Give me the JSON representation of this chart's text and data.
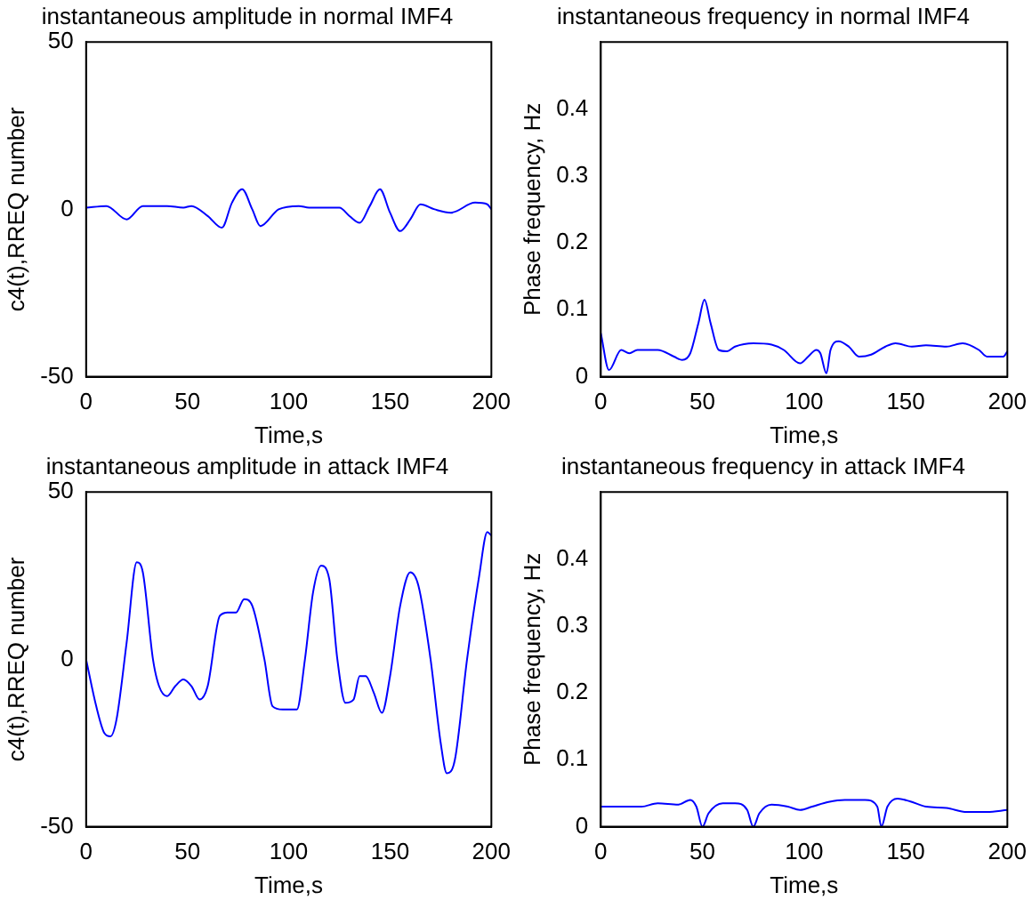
{
  "chart_data": [
    {
      "type": "line",
      "title": "instantaneous amplitude in normal IMF4",
      "xlabel": "Time,s",
      "ylabel": "c4(t),RREQ number",
      "xlim": [
        0,
        200
      ],
      "xticks": [
        0,
        50,
        100,
        150,
        200
      ],
      "ylim": [
        -50,
        50
      ],
      "yticks": [
        -50,
        0,
        50
      ],
      "grid": false,
      "legend": false,
      "series": [
        {
          "color": "#0000ff",
          "x": [
            0,
            10,
            20,
            28,
            40,
            48,
            52,
            60,
            67,
            72,
            77,
            82,
            86,
            95,
            105,
            110,
            125,
            130,
            135,
            140,
            145,
            150,
            155,
            160,
            165,
            172,
            180,
            192,
            198,
            200
          ],
          "values": [
            0.5,
            1,
            -3,
            1,
            1,
            0.5,
            1,
            -2,
            -5.5,
            2,
            6,
            0,
            -5,
            0,
            1,
            0.5,
            0.5,
            -2,
            -4,
            1,
            6,
            -1,
            -6.5,
            -3,
            1.5,
            0,
            -1,
            2,
            1.5,
            0
          ]
        }
      ]
    },
    {
      "type": "line",
      "title": "instantaneous frequency in normal IMF4",
      "xlabel": "Time,s",
      "ylabel": "Phase frequency, Hz",
      "xlim": [
        0,
        200
      ],
      "xticks": [
        0,
        50,
        100,
        150,
        200
      ],
      "ylim": [
        0,
        0.5
      ],
      "yticks": [
        0,
        0.1,
        0.2,
        0.3,
        0.4
      ],
      "grid": false,
      "legend": false,
      "series": [
        {
          "color": "#0000ff",
          "x": [
            0,
            4,
            10,
            14,
            18,
            28,
            36,
            40,
            44,
            48,
            51,
            54,
            58,
            62,
            66,
            75,
            84,
            90,
            98,
            102,
            106,
            108,
            111,
            113,
            117,
            122,
            127,
            133,
            140,
            145,
            153,
            160,
            170,
            178,
            186,
            190,
            198,
            200
          ],
          "values": [
            0.065,
            0.01,
            0.04,
            0.035,
            0.04,
            0.04,
            0.03,
            0.025,
            0.035,
            0.08,
            0.115,
            0.08,
            0.04,
            0.038,
            0.045,
            0.05,
            0.048,
            0.04,
            0.02,
            0.03,
            0.04,
            0.035,
            0.005,
            0.04,
            0.053,
            0.045,
            0.03,
            0.033,
            0.045,
            0.05,
            0.045,
            0.047,
            0.045,
            0.05,
            0.04,
            0.03,
            0.03,
            0.038
          ]
        }
      ]
    },
    {
      "type": "line",
      "title": "instantaneous amplitude in attack IMF4",
      "xlabel": "Time,s",
      "ylabel": "c4(t),RREQ number",
      "xlim": [
        0,
        200
      ],
      "xticks": [
        0,
        50,
        100,
        150,
        200
      ],
      "ylim": [
        -50,
        50
      ],
      "yticks": [
        -50,
        0,
        50
      ],
      "grid": false,
      "legend": false,
      "series": [
        {
          "color": "#0000ff",
          "x": [
            0,
            5,
            9,
            12,
            15,
            20,
            25,
            28,
            33,
            36,
            40,
            44,
            48,
            52,
            56,
            60,
            66,
            70,
            74,
            78,
            82,
            88,
            92,
            97,
            101,
            104,
            108,
            112,
            116,
            120,
            124,
            128,
            132,
            135,
            138,
            142,
            146,
            150,
            155,
            160,
            164,
            170,
            175,
            178,
            182,
            188,
            194,
            198,
            200
          ],
          "values": [
            0,
            -14,
            -22,
            -23,
            -18,
            5,
            29,
            26,
            0,
            -8,
            -11,
            -8,
            -6,
            -8,
            -12,
            -8,
            13,
            14,
            14,
            18,
            16,
            0,
            -14,
            -15,
            -15,
            -15,
            0,
            20,
            28,
            24,
            0,
            -13,
            -12,
            -5,
            -5,
            -10,
            -16,
            -5,
            16,
            26,
            22,
            0,
            -25,
            -34,
            -30,
            0,
            25,
            38,
            37
          ]
        }
      ]
    },
    {
      "type": "line",
      "title": "instantaneous frequency in attack IMF4",
      "xlabel": "Time,s",
      "ylabel": "Phase frequency, Hz",
      "xlim": [
        0,
        200
      ],
      "xticks": [
        0,
        50,
        100,
        150,
        200
      ],
      "ylim": [
        0,
        0.5
      ],
      "yticks": [
        0,
        0.1,
        0.2,
        0.3,
        0.4
      ],
      "grid": false,
      "legend": false,
      "series": [
        {
          "color": "#0000ff",
          "x": [
            0,
            10,
            20,
            28,
            38,
            44,
            47,
            50,
            53,
            60,
            66,
            72,
            75,
            78,
            84,
            92,
            98,
            104,
            112,
            120,
            130,
            136,
            138,
            141,
            146,
            152,
            160,
            170,
            180,
            190,
            200
          ],
          "values": [
            0.03,
            0.03,
            0.03,
            0.035,
            0.033,
            0.04,
            0.03,
            0,
            0.02,
            0.035,
            0.035,
            0.025,
            0,
            0.02,
            0.033,
            0.03,
            0.025,
            0.03,
            0.037,
            0.04,
            0.04,
            0.03,
            0,
            0.03,
            0.042,
            0.038,
            0.03,
            0.028,
            0.022,
            0.022,
            0.025
          ]
        }
      ]
    }
  ]
}
